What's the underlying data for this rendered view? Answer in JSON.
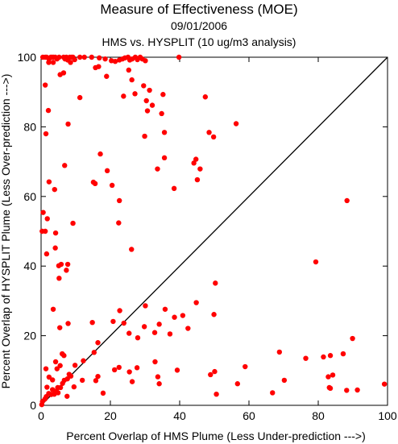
{
  "chart_data": {
    "type": "scatter",
    "title": "Measure of Effectiveness (MOE)",
    "date": "09/01/2006",
    "subtitle": "HMS vs. HYSPLIT  (10 ug/m3 analysis)",
    "xlabel": "Percent Overlap of HMS Plume (Less Under-prediction --->)",
    "ylabel": "Percent Overlap of HYSPLIT Plume (Less Over-prediction --->)",
    "xlim": [
      0,
      100
    ],
    "ylim": [
      0,
      100
    ],
    "x_ticks": [
      0,
      20,
      40,
      60,
      80,
      100
    ],
    "y_ticks": [
      0,
      20,
      40,
      60,
      80,
      100
    ],
    "grid": false,
    "reference_line": {
      "from": [
        0,
        0
      ],
      "to": [
        100,
        100
      ],
      "color": "#000000"
    },
    "marker_color": "#ff0000",
    "series": [
      {
        "points": [
          [
            0.5,
            100
          ],
          [
            1.2,
            100
          ],
          [
            1.6,
            100
          ],
          [
            2.3,
            99.5
          ],
          [
            2.8,
            100
          ],
          [
            3.2,
            100
          ],
          [
            3.6,
            100
          ],
          [
            4.1,
            100
          ],
          [
            4.6,
            99.5
          ],
          [
            5.2,
            100
          ],
          [
            6.5,
            100
          ],
          [
            6.9,
            99.5
          ],
          [
            7.3,
            100
          ],
          [
            7.7,
            99.2
          ],
          [
            8.3,
            100
          ],
          [
            8.8,
            100
          ],
          [
            9.2,
            100
          ],
          [
            9.7,
            99.3
          ],
          [
            11.2,
            100
          ],
          [
            12.5,
            100
          ],
          [
            14.6,
            100
          ],
          [
            16.8,
            99.8
          ],
          [
            18.5,
            99.5
          ],
          [
            20.3,
            99
          ],
          [
            21.4,
            98.8
          ],
          [
            22.6,
            99.2
          ],
          [
            23.5,
            99.5
          ],
          [
            24.2,
            99.8
          ],
          [
            25.1,
            100
          ],
          [
            25.6,
            99.2
          ],
          [
            26.3,
            99.5
          ],
          [
            27.2,
            100
          ],
          [
            27.8,
            99.3
          ],
          [
            28.6,
            100
          ],
          [
            29.2,
            99.5
          ],
          [
            30.1,
            99
          ],
          [
            39.8,
            100
          ],
          [
            2.2,
            98.5
          ],
          [
            3.5,
            98.5
          ],
          [
            8.5,
            98.5
          ],
          [
            1.2,
            92
          ],
          [
            5.5,
            95
          ],
          [
            6.5,
            95.5
          ],
          [
            15.7,
            97
          ],
          [
            16.6,
            97.3
          ],
          [
            18.9,
            94.5
          ],
          [
            25.3,
            96.3
          ],
          [
            26.2,
            93.5
          ],
          [
            29.6,
            91.8
          ],
          [
            31.3,
            90.5
          ],
          [
            11.2,
            88.4
          ],
          [
            2.1,
            84.7
          ],
          [
            23.8,
            88.8
          ],
          [
            27.1,
            89.5
          ],
          [
            30.4,
            87.5
          ],
          [
            30.7,
            84.6
          ],
          [
            32.1,
            86.2
          ],
          [
            35.2,
            89.3
          ],
          [
            47.4,
            88.6
          ],
          [
            34.8,
            83.8
          ],
          [
            7.8,
            80.8
          ],
          [
            1.4,
            78
          ],
          [
            29.9,
            77.3
          ],
          [
            35.6,
            78.4
          ],
          [
            48.5,
            78.4
          ],
          [
            49.8,
            77.1
          ],
          [
            56.3,
            80.9
          ],
          [
            17.1,
            72.2
          ],
          [
            35.6,
            71.1
          ],
          [
            6.8,
            68.9
          ],
          [
            19.1,
            67.4
          ],
          [
            33.6,
            67.9
          ],
          [
            44.1,
            69.6
          ],
          [
            44.7,
            70.7
          ],
          [
            45.1,
            64.8
          ],
          [
            45.9,
            67.9
          ],
          [
            2.3,
            64.2
          ],
          [
            15.1,
            64.1
          ],
          [
            15.6,
            63.7
          ],
          [
            20.5,
            63.2
          ],
          [
            3.9,
            62
          ],
          [
            22.6,
            58.8
          ],
          [
            38.4,
            62.3
          ],
          [
            0.6,
            55.4
          ],
          [
            1.8,
            53.6
          ],
          [
            22.4,
            52.4
          ],
          [
            9.2,
            52.3
          ],
          [
            0.3,
            50
          ],
          [
            1.2,
            50
          ],
          [
            4.2,
            49.5
          ],
          [
            4.1,
            45.2
          ],
          [
            26.1,
            44.8
          ],
          [
            1.6,
            43.5
          ],
          [
            5.1,
            40.1
          ],
          [
            5.8,
            40.5
          ],
          [
            7.7,
            40.5
          ],
          [
            7.3,
            38.8
          ],
          [
            5.2,
            36.5
          ],
          [
            88.3,
            58.8
          ],
          [
            79.3,
            41.2
          ],
          [
            50.3,
            35.1
          ],
          [
            3.5,
            27.6
          ],
          [
            22.7,
            27.2
          ],
          [
            30.1,
            28.6
          ],
          [
            35.8,
            27.6
          ],
          [
            44.8,
            29.5
          ],
          [
            40.9,
            25.8
          ],
          [
            49.9,
            26.1
          ],
          [
            7.8,
            23.5
          ],
          [
            5.4,
            22.3
          ],
          [
            14.8,
            23.8
          ],
          [
            20.8,
            24.1
          ],
          [
            23.9,
            23.6
          ],
          [
            25.4,
            20.7
          ],
          [
            29.8,
            22.6
          ],
          [
            32.8,
            20.9
          ],
          [
            34.1,
            23.3
          ],
          [
            37.2,
            20.5
          ],
          [
            38.5,
            25.3
          ],
          [
            42.4,
            22.1
          ],
          [
            27.9,
            19.4
          ],
          [
            16.4,
            18
          ],
          [
            89.9,
            19.2
          ],
          [
            1.4,
            10.5
          ],
          [
            4.2,
            12.5
          ],
          [
            6.1,
            14.8
          ],
          [
            6.6,
            14.3
          ],
          [
            9.8,
            11.5
          ],
          [
            12.2,
            12.8
          ],
          [
            15.3,
            15.2
          ],
          [
            15.8,
            7.1
          ],
          [
            16.4,
            8.3
          ],
          [
            11.9,
            7.2
          ],
          [
            21.2,
            10.2
          ],
          [
            22.5,
            10.9
          ],
          [
            25.5,
            9.6
          ],
          [
            26.3,
            6.8
          ],
          [
            27.7,
            10.8
          ],
          [
            32.9,
            12.5
          ],
          [
            39.3,
            10.1
          ],
          [
            48.9,
            8.8
          ],
          [
            50.1,
            9.7
          ],
          [
            56.7,
            6.2
          ],
          [
            58.9,
            11.1
          ],
          [
            68.8,
            15.3
          ],
          [
            70.2,
            7.2
          ],
          [
            76.4,
            13.5
          ],
          [
            81.5,
            13.9
          ],
          [
            82.9,
            8.2
          ],
          [
            83.5,
            14.3
          ],
          [
            83.2,
            5.1
          ],
          [
            84.2,
            8.7
          ],
          [
            87.2,
            14.8
          ],
          [
            88.2,
            4.3
          ],
          [
            91.3,
            4.4
          ],
          [
            99.1,
            6.1
          ],
          [
            50.6,
            3.2
          ],
          [
            66.8,
            3.6
          ],
          [
            83.5,
            4.9
          ],
          [
            17.9,
            3.5
          ],
          [
            33.7,
            8.2
          ],
          [
            34.1,
            6.2
          ],
          [
            0.2,
            0.2
          ],
          [
            0.4,
            1.1
          ],
          [
            1.1,
            1.8
          ],
          [
            1.5,
            2.5
          ],
          [
            2.2,
            3.4
          ],
          [
            2.9,
            3.1
          ],
          [
            3.3,
            4.5
          ],
          [
            3.8,
            3.2
          ],
          [
            4.4,
            4.1
          ],
          [
            4.9,
            3.6
          ],
          [
            5.6,
            5.1
          ],
          [
            6.2,
            6.3
          ],
          [
            6.7,
            7.2
          ],
          [
            7.6,
            7.6
          ],
          [
            8.1,
            8.9
          ],
          [
            3.3,
            7.3
          ],
          [
            4.6,
            10.5
          ],
          [
            5.5,
            11.4
          ],
          [
            7.5,
            2.6
          ],
          [
            9.5,
            5.3
          ],
          [
            4.8,
            5.1
          ],
          [
            1.7,
            5.2
          ],
          [
            8.6,
            8.4
          ],
          [
            2.3,
            8.1
          ]
        ]
      }
    ]
  }
}
